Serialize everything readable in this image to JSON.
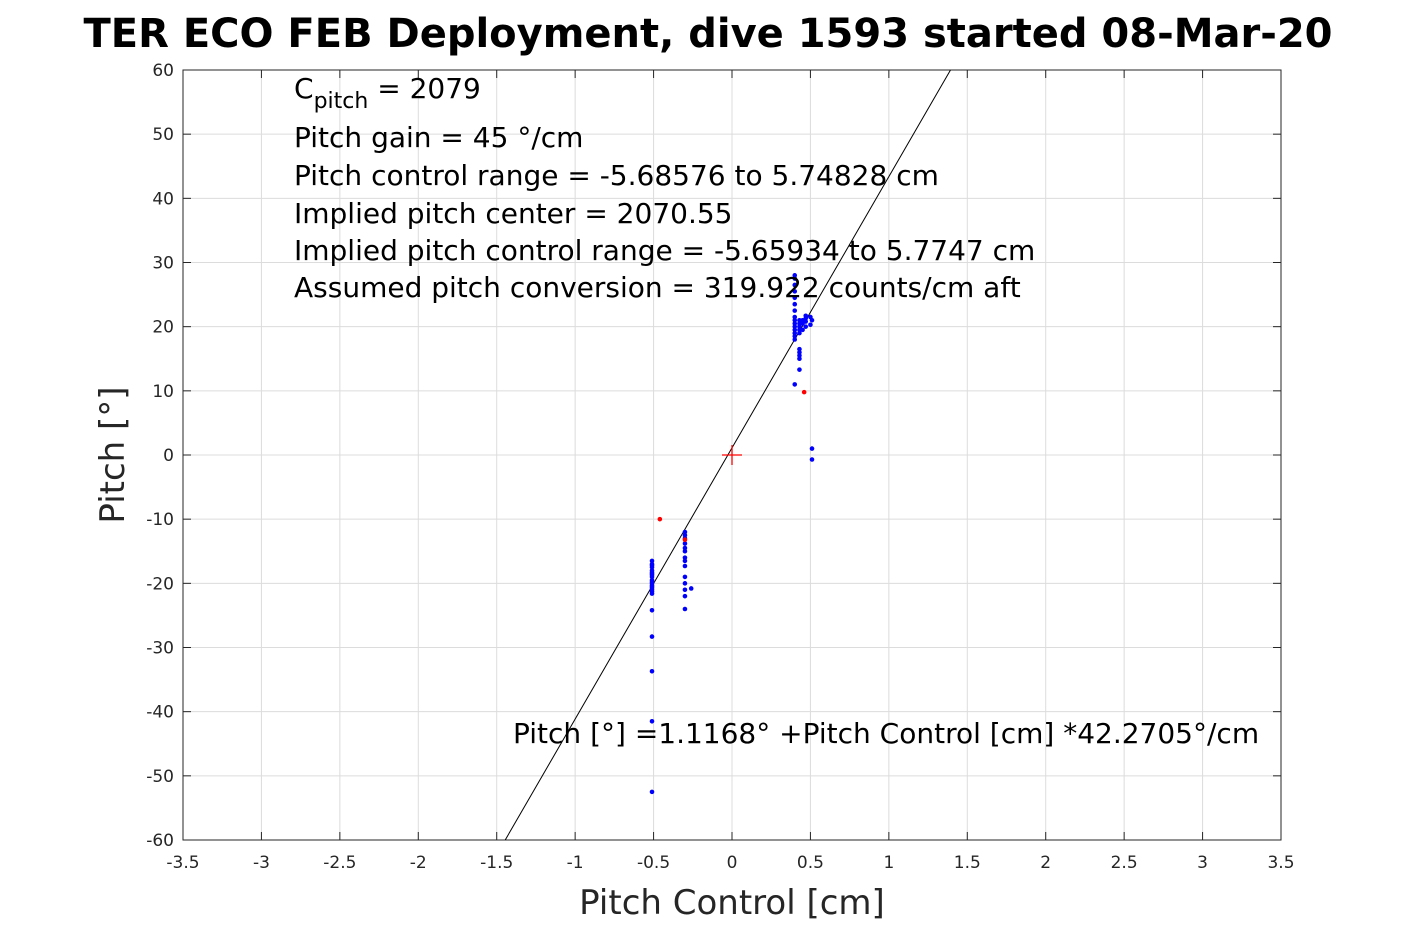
{
  "chart_data": {
    "type": "scatter",
    "title": "TER ECO FEB Deployment, dive 1593 started 08-Mar-20",
    "xlabel": "Pitch Control [cm]",
    "ylabel": "Pitch [°]",
    "xlim": [
      -3.5,
      3.5
    ],
    "ylim": [
      -60,
      60
    ],
    "grid": true,
    "x_ticks": [
      "-3.5",
      "-3",
      "-2.5",
      "-2",
      "-1.5",
      "-1",
      "-0.5",
      "0",
      "0.5",
      "1",
      "1.5",
      "2",
      "2.5",
      "3",
      "3.5"
    ],
    "y_ticks": [
      "60",
      "50",
      "40",
      "30",
      "20",
      "10",
      "0",
      "-10",
      "-20",
      "-30",
      "-40",
      "-50",
      "-60"
    ],
    "info_lines": {
      "cpitch_symbol": "C",
      "cpitch_subscript": "pitch",
      "cpitch_value": " = 2079",
      "gain": "Pitch gain = 45 °/cm",
      "control_range": "Pitch control range = -5.68576 to 5.74828 cm",
      "implied_center": "Implied pitch center = 2070.55",
      "implied_range": "Implied pitch control range = -5.65934 to 5.7747 cm",
      "conversion": "Assumed pitch conversion = 319.922 counts/cm aft"
    },
    "fit_label": "Pitch [°] =1.1168° +Pitch Control [cm] *42.2705°/cm",
    "fit": {
      "intercept": 1.1168,
      "slope": 42.2705,
      "color": "#000000"
    },
    "center_marker": {
      "x": 0,
      "y": 0,
      "color": "#ff0000"
    },
    "series": [
      {
        "color": "#0000ff",
        "x": [
          -0.51,
          -0.51,
          -0.51,
          -0.51,
          -0.51,
          -0.51,
          -0.51,
          -0.51,
          -0.51,
          -0.51,
          -0.51,
          -0.51,
          -0.51,
          -0.51,
          -0.51,
          -0.51,
          -0.51,
          -0.51,
          -0.51,
          -0.51,
          -0.51,
          -0.51,
          -0.51,
          -0.3,
          -0.3,
          -0.3,
          -0.3,
          -0.3,
          -0.3,
          -0.3,
          -0.3,
          -0.3,
          -0.3,
          -0.3,
          -0.3,
          -0.3,
          -0.3,
          -0.26,
          0.4,
          0.4,
          0.4,
          0.4,
          0.4,
          0.4,
          0.4,
          0.4,
          0.4,
          0.4,
          0.4,
          0.4,
          0.4,
          0.4,
          0.4,
          0.4,
          0.43,
          0.43,
          0.43,
          0.43,
          0.43,
          0.43,
          0.43,
          0.43,
          0.43,
          0.43,
          0.45,
          0.45,
          0.45,
          0.47,
          0.47,
          0.47,
          0.47,
          0.5,
          0.5,
          0.51,
          0.51,
          0.51
        ],
        "y": [
          -16.5,
          -17.0,
          -17.5,
          -18.0,
          -18.3,
          -18.7,
          -19.0,
          -19.5,
          -20.0,
          -20.3,
          -20.7,
          -21.0,
          -21.3,
          -21.6,
          -17.2,
          -18.5,
          -19.8,
          -20.5,
          -24.2,
          -28.3,
          -33.7,
          -41.5,
          -52.5,
          -12.0,
          -12.5,
          -13.0,
          -13.8,
          -14.5,
          -15.0,
          -16.0,
          -16.5,
          -17.3,
          -19.0,
          -20.0,
          -21.0,
          -22.0,
          -24.0,
          -20.8,
          18.0,
          18.5,
          19.0,
          19.5,
          20.0,
          20.5,
          21.0,
          21.5,
          22.5,
          23.5,
          24.5,
          25.5,
          26.5,
          27.5,
          28.0,
          11.0,
          19.0,
          19.5,
          20.0,
          20.5,
          21.0,
          15.0,
          15.5,
          16.0,
          16.5,
          13.3,
          19.5,
          20.5,
          21.0,
          20.0,
          20.8,
          21.3,
          21.7,
          20.3,
          21.5,
          1.0,
          -0.7,
          21.0
        ]
      },
      {
        "color": "#ff0000",
        "x": [
          -0.46,
          0.46,
          -0.3
        ],
        "y": [
          -10.0,
          9.8,
          -13.2
        ]
      }
    ]
  }
}
